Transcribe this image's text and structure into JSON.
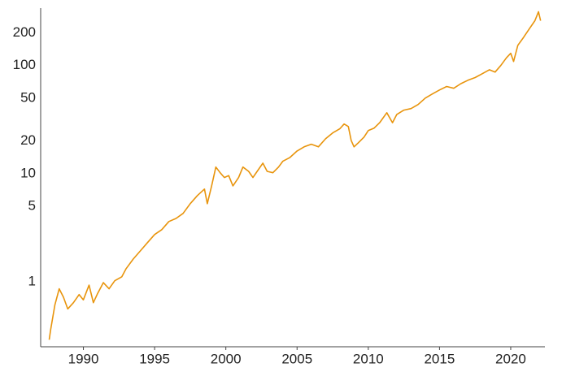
{
  "chart_data": {
    "type": "line",
    "log_y": true,
    "grid": false,
    "color": "#e8940c",
    "x": [
      1987.6,
      1987.7,
      1988.0,
      1988.3,
      1988.6,
      1988.9,
      1989.3,
      1989.7,
      1990.0,
      1990.4,
      1990.7,
      1991.0,
      1991.4,
      1991.8,
      1992.2,
      1992.7,
      1993.0,
      1993.5,
      1994.0,
      1994.5,
      1995.0,
      1995.5,
      1996.0,
      1996.5,
      1997.0,
      1997.5,
      1998.0,
      1998.5,
      1998.7,
      1999.0,
      1999.3,
      1999.6,
      1999.9,
      2000.2,
      2000.5,
      2000.9,
      2001.2,
      2001.6,
      2001.9,
      2002.2,
      2002.6,
      2002.9,
      2003.3,
      2003.7,
      2004.0,
      2004.5,
      2005.0,
      2005.5,
      2006.0,
      2006.5,
      2007.0,
      2007.5,
      2008.0,
      2008.3,
      2008.6,
      2008.8,
      2009.0,
      2009.3,
      2009.7,
      2010.0,
      2010.4,
      2010.8,
      2011.3,
      2011.7,
      2012.0,
      2012.5,
      2013.0,
      2013.5,
      2014.0,
      2014.5,
      2015.0,
      2015.5,
      2016.0,
      2016.5,
      2017.0,
      2017.5,
      2018.0,
      2018.5,
      2018.9,
      2019.3,
      2019.7,
      2020.0,
      2020.2,
      2020.5,
      2020.9,
      2021.3,
      2021.7,
      2021.95,
      2022.1
    ],
    "values": [
      0.29,
      0.36,
      0.61,
      0.86,
      0.72,
      0.56,
      0.64,
      0.76,
      0.68,
      0.93,
      0.64,
      0.78,
      0.98,
      0.86,
      1.02,
      1.11,
      1.32,
      1.62,
      1.93,
      2.3,
      2.73,
      3.03,
      3.6,
      3.85,
      4.28,
      5.27,
      6.27,
      7.2,
      5.27,
      7.7,
      11.5,
      10.2,
      9.2,
      9.6,
      7.7,
      9.2,
      11.5,
      10.5,
      9.2,
      10.5,
      12.5,
      10.5,
      10.2,
      11.5,
      13,
      14.1,
      16.2,
      17.7,
      18.7,
      17.7,
      21,
      23.8,
      26,
      28.8,
      27.3,
      20.3,
      17.7,
      19.3,
      21.8,
      25,
      26.3,
      29.6,
      36.6,
      29.6,
      35.3,
      38.7,
      40,
      43.6,
      50,
      54.6,
      59.4,
      64,
      61.6,
      68,
      73.2,
      77.5,
      84,
      91.5,
      87,
      100,
      118,
      130,
      109,
      154,
      182,
      218,
      260,
      315,
      260
    ],
    "xlim": [
      1987,
      2022.4
    ],
    "xticks": [
      1990,
      1995,
      2000,
      2005,
      2010,
      2015,
      2020
    ],
    "ylim": [
      0.25,
      340
    ],
    "yticks": [
      1,
      5,
      10,
      20,
      50,
      100,
      200
    ]
  }
}
